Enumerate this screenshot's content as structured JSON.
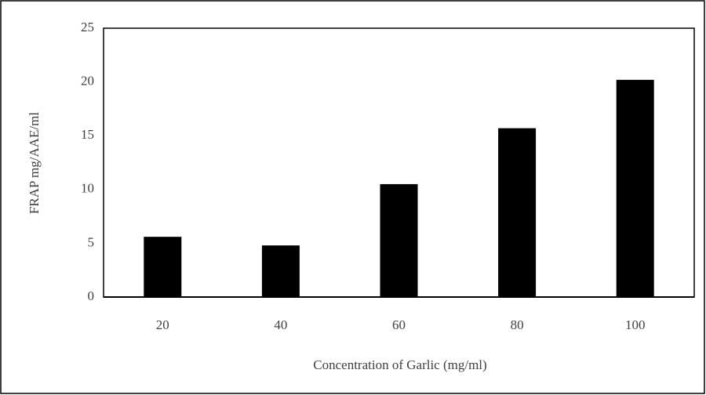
{
  "chart_data": {
    "type": "bar",
    "xlabel": "Concentration of Garlic (mg/ml)",
    "ylabel": "FRAP mg/AAE/ml",
    "categories": [
      "20",
      "40",
      "60",
      "80",
      "100"
    ],
    "values": [
      5.6,
      4.8,
      10.5,
      15.7,
      20.2
    ],
    "color": "#000000",
    "ylim": [
      0,
      25
    ],
    "yticks": [
      0,
      5,
      10,
      15,
      20,
      25
    ],
    "grid": false
  }
}
